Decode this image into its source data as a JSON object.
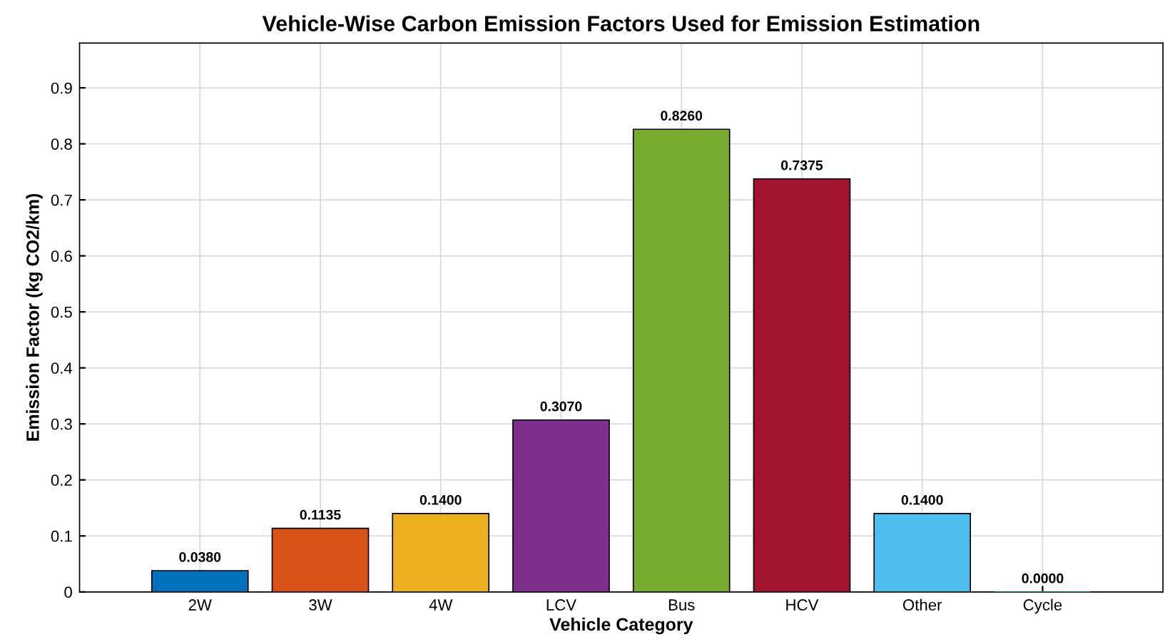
{
  "chart_data": {
    "type": "bar",
    "title": "Vehicle-Wise Carbon Emission Factors Used for Emission Estimation",
    "xlabel": "Vehicle Category",
    "ylabel": "Emission Factor (kg CO2/km)",
    "categories": [
      "2W",
      "3W",
      "4W",
      "LCV",
      "Bus",
      "HCV",
      "Other",
      "Cycle"
    ],
    "values": [
      0.038,
      0.1135,
      0.14,
      0.307,
      0.826,
      0.7375,
      0.14,
      0.0
    ],
    "value_labels": [
      "0.0380",
      "0.1135",
      "0.1400",
      "0.3070",
      "0.8260",
      "0.7375",
      "0.1400",
      "0.0000"
    ],
    "colors": [
      "#0072bd",
      "#d95319",
      "#edb120",
      "#7e2f8e",
      "#77ac30",
      "#a2142f",
      "#4dbeee",
      "#0072bd"
    ],
    "ylim": [
      0,
      0.98
    ],
    "yticks": [
      0,
      0.1,
      0.2,
      0.3,
      0.4,
      0.5,
      0.6,
      0.7,
      0.8,
      0.9
    ],
    "grid": true
  }
}
